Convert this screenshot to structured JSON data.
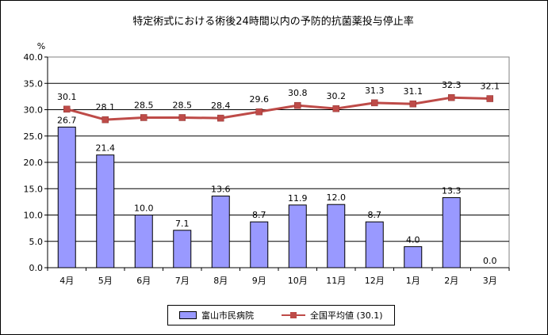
{
  "chart_data": {
    "type": "bar",
    "title": "特定術式における術後24時間以内の予防的抗菌薬投与停止率",
    "yunit": "%",
    "ylim": [
      0,
      40
    ],
    "yticks": [
      "0.0",
      "5.0",
      "10.0",
      "15.0",
      "20.0",
      "25.0",
      "30.0",
      "35.0",
      "40.0"
    ],
    "grid": true,
    "legend_position": "bottom",
    "categories": [
      "4月",
      "5月",
      "6月",
      "7月",
      "8月",
      "9月",
      "10月",
      "11月",
      "12月",
      "1月",
      "2月",
      "3月"
    ],
    "series": [
      {
        "name": "富山市民病院",
        "type": "bar",
        "color": "#9999ff",
        "values": [
          26.7,
          21.4,
          10.0,
          7.1,
          13.6,
          8.7,
          11.9,
          12.0,
          8.7,
          4.0,
          13.3,
          0.0
        ],
        "labels": [
          "26.7",
          "21.4",
          "10.0",
          "7.1",
          "13.6",
          "8.7",
          "11.9",
          "12.0",
          "8.7",
          "4.0",
          "13.3",
          "0.0"
        ]
      },
      {
        "name": "全国平均値 (30.1)",
        "type": "line",
        "color": "#be4b48",
        "values": [
          30.1,
          28.1,
          28.5,
          28.5,
          28.4,
          29.6,
          30.8,
          30.2,
          31.3,
          31.1,
          32.3,
          32.1
        ],
        "labels": [
          "30.1",
          "28.1",
          "28.5",
          "28.5",
          "28.4",
          "29.6",
          "30.8",
          "30.2",
          "31.3",
          "31.1",
          "32.3",
          "32.1"
        ]
      }
    ]
  }
}
